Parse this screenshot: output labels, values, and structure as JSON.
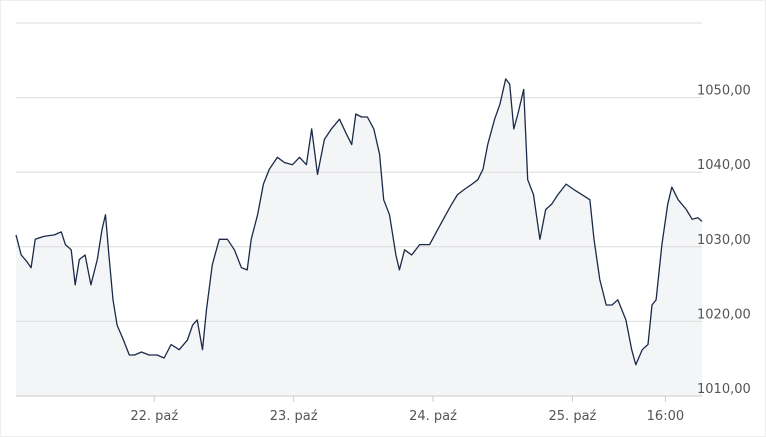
{
  "chart_data": {
    "type": "line",
    "x": [
      -23.8,
      -22.9,
      -21.9,
      -21.2,
      -20.5,
      -19.0,
      -17.2,
      -16.0,
      -15.3,
      -14.3,
      -13.6,
      -12.9,
      -11.9,
      -10.9,
      -9.8,
      -9.0,
      -8.4,
      -7.8,
      -7.1,
      -6.4,
      -5.3,
      -4.3,
      -3.4,
      -2.2,
      -0.9,
      0.5,
      1.7,
      2.9,
      4.3,
      5.7,
      6.6,
      7.4,
      8.3,
      9.0,
      10.0,
      11.2,
      12.6,
      13.8,
      15.0,
      16.0,
      16.7,
      17.8,
      18.8,
      19.8,
      21.2,
      22.4,
      23.8,
      25.0,
      26.2,
      27.1,
      28.1,
      29.3,
      30.5,
      31.9,
      33.1,
      34.0,
      34.7,
      35.7,
      36.7,
      37.8,
      38.8,
      39.5,
      40.5,
      41.6,
      42.2,
      43.1,
      44.3,
      45.7,
      47.4,
      48.8,
      50.2,
      51.2,
      52.2,
      53.4,
      54.7,
      55.7,
      56.6,
      57.4,
      58.6,
      59.5,
      60.5,
      61.2,
      61.9,
      62.6,
      63.6,
      64.3,
      65.3,
      66.4,
      67.4,
      68.4,
      69.5,
      70.9,
      72.2,
      73.6,
      75.0,
      75.7,
      76.7,
      77.8,
      78.8,
      79.8,
      81.2,
      82.2,
      82.9,
      84.0,
      85.0,
      85.7,
      86.4,
      87.4,
      88.4,
      89.1,
      90.2,
      91.6,
      92.6,
      93.6,
      94.3
    ],
    "series": [
      {
        "color": "#1b2a48",
        "values": [
          1031.6,
          1028.9,
          1028.0,
          1027.2,
          1031.0,
          1031.4,
          1031.6,
          1032.0,
          1030.3,
          1029.6,
          1024.9,
          1028.3,
          1028.9,
          1024.9,
          1028.3,
          1032.3,
          1034.3,
          1028.9,
          1022.9,
          1019.5,
          1017.5,
          1015.5,
          1015.5,
          1015.9,
          1015.5,
          1015.5,
          1015.1,
          1016.9,
          1016.2,
          1017.5,
          1019.5,
          1020.2,
          1016.2,
          1021.6,
          1027.6,
          1031.0,
          1031.0,
          1029.6,
          1027.2,
          1026.9,
          1031.0,
          1034.3,
          1038.4,
          1040.4,
          1042.0,
          1041.3,
          1041.0,
          1042.0,
          1041.0,
          1045.8,
          1039.7,
          1044.4,
          1045.8,
          1047.1,
          1045.1,
          1043.7,
          1047.8,
          1047.4,
          1047.4,
          1045.8,
          1042.4,
          1036.3,
          1034.3,
          1028.9,
          1026.9,
          1029.6,
          1028.9,
          1030.3,
          1030.3,
          1032.3,
          1034.3,
          1035.7,
          1037.0,
          1037.7,
          1038.4,
          1039.0,
          1040.4,
          1043.7,
          1047.1,
          1049.1,
          1052.5,
          1051.8,
          1045.8,
          1047.8,
          1051.1,
          1039.0,
          1037.0,
          1031.0,
          1035.0,
          1035.7,
          1037.0,
          1038.4,
          1037.7,
          1037.0,
          1036.3,
          1031.0,
          1025.6,
          1022.2,
          1022.2,
          1022.9,
          1020.2,
          1016.2,
          1014.2,
          1016.2,
          1016.9,
          1022.2,
          1022.9,
          1030.3,
          1035.7,
          1038.0,
          1036.3,
          1035.0,
          1033.7,
          1033.9,
          1033.4
        ]
      }
    ],
    "xlim": [
      -23.8,
      94.3
    ],
    "xticks": [
      {
        "value": 0,
        "label": "22. paź"
      },
      {
        "value": 24,
        "label": "23. paź"
      },
      {
        "value": 48,
        "label": "24. paź"
      },
      {
        "value": 72,
        "label": "25. paź"
      },
      {
        "value": 88,
        "label": "16:00"
      }
    ],
    "ylim": [
      1010,
      1060
    ],
    "yticks": [
      {
        "value": 1010,
        "label": "1010,00"
      },
      {
        "value": 1020,
        "label": "1020,00"
      },
      {
        "value": 1030,
        "label": "1030,00"
      },
      {
        "value": 1040,
        "label": "1040,00"
      },
      {
        "value": 1050,
        "label": "1050,00"
      },
      1060
    ],
    "grid": true,
    "area_color": "#f4f5f7"
  }
}
